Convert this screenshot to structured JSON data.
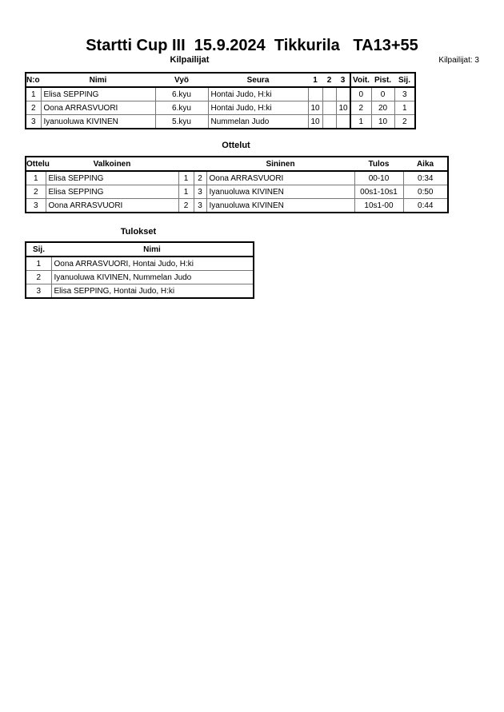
{
  "title": "Startti Cup III  15.9.2024  Tikkurila   TA13+55",
  "competitors": {
    "heading": "Kilpailijat",
    "count_label": "Kilpailijat: 3",
    "columns": [
      "N:o",
      "Nimi",
      "Vyö",
      "Seura",
      "1",
      "2",
      "3",
      "Voit.",
      "Pist.",
      "Sij."
    ],
    "rows": [
      {
        "no": "1",
        "name": "Elisa SEPPING",
        "belt": "6.kyu",
        "club": "Hontai Judo, H:ki",
        "m1": "",
        "m2": "",
        "m3": "",
        "wins": "0",
        "points": "0",
        "place": "3"
      },
      {
        "no": "2",
        "name": "Oona ARRASVUORI",
        "belt": "6.kyu",
        "club": "Hontai Judo, H:ki",
        "m1": "10",
        "m2": "",
        "m3": "10",
        "wins": "2",
        "points": "20",
        "place": "1"
      },
      {
        "no": "3",
        "name": "Iyanuoluwa KIVINEN",
        "belt": "5.kyu",
        "club": "Nummelan Judo",
        "m1": "10",
        "m2": "",
        "m3": "",
        "wins": "1",
        "points": "10",
        "place": "2"
      }
    ]
  },
  "matches": {
    "heading": "Ottelut",
    "columns": [
      "Ottelu",
      "Valkoinen",
      "Sininen",
      "Tulos",
      "Aika"
    ],
    "rows": [
      {
        "no": "1",
        "white": "Elisa SEPPING",
        "wn": "1",
        "bn": "2",
        "blue": "Oona ARRASVUORI",
        "result": "00-10",
        "time": "0:34"
      },
      {
        "no": "2",
        "white": "Elisa SEPPING",
        "wn": "1",
        "bn": "3",
        "blue": "Iyanuoluwa KIVINEN",
        "result": "00s1-10s1",
        "time": "0:50"
      },
      {
        "no": "3",
        "white": "Oona ARRASVUORI",
        "wn": "2",
        "bn": "3",
        "blue": "Iyanuoluwa KIVINEN",
        "result": "10s1-00",
        "time": "0:44"
      }
    ]
  },
  "results": {
    "heading": "Tulokset",
    "columns": [
      "Sij.",
      "Nimi"
    ],
    "rows": [
      {
        "place": "1",
        "name": "Oona ARRASVUORI, Hontai Judo, H:ki"
      },
      {
        "place": "2",
        "name": "Iyanuoluwa KIVINEN, Nummelan Judo"
      },
      {
        "place": "3",
        "name": "Elisa SEPPING, Hontai Judo, H:ki"
      }
    ]
  }
}
